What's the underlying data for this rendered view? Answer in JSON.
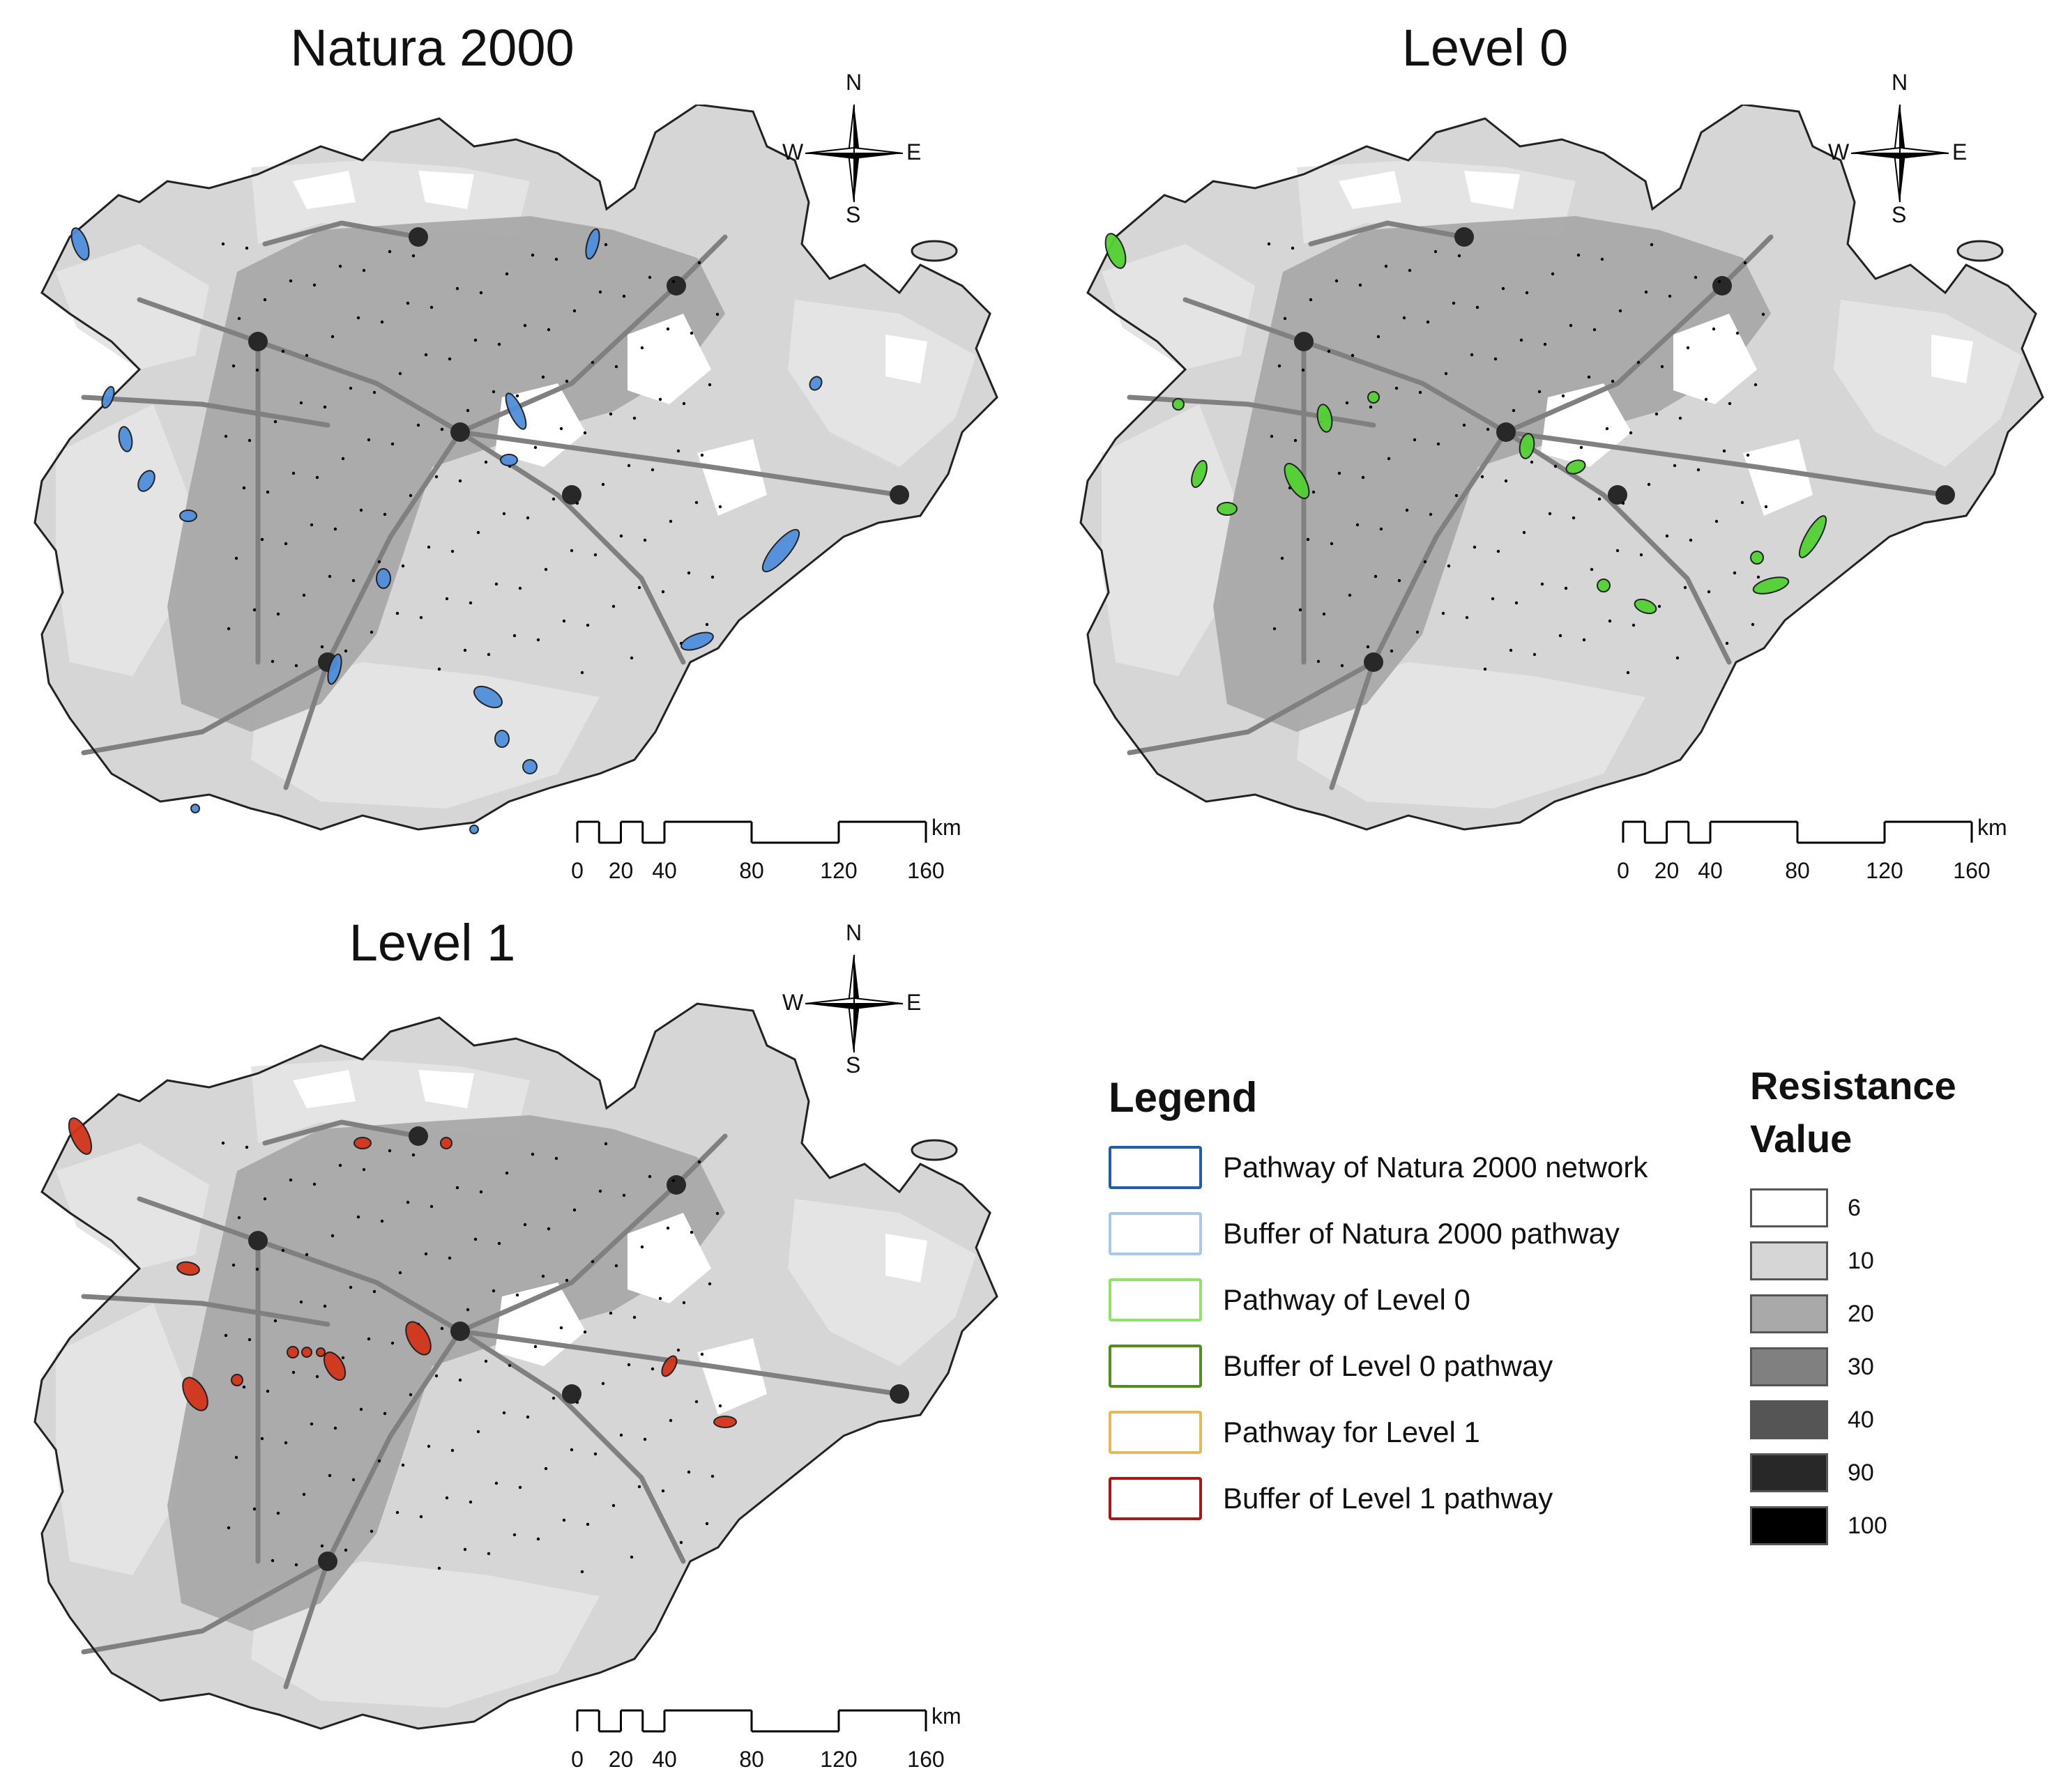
{
  "panels": [
    {
      "title": "Natura 2000",
      "pathway_color": "#4f8fdc"
    },
    {
      "title": "Level 0",
      "pathway_color": "#52d132"
    },
    {
      "title": "Level 1",
      "pathway_color": "#d2341a"
    }
  ],
  "compass": {
    "n": "N",
    "s": "S",
    "e": "E",
    "w": "W"
  },
  "scale": {
    "ticks": [
      "0",
      "20",
      "40",
      "80",
      "120",
      "160"
    ],
    "unit": "km"
  },
  "legend": {
    "title": "Legend",
    "items": [
      {
        "label": "Pathway of Natura 2000 network",
        "color": "#1f5ea8"
      },
      {
        "label": "Buffer of Natura 2000 pathway",
        "color": "#a9c8ee"
      },
      {
        "label": "Pathway of Level 0",
        "color": "#8fe26c"
      },
      {
        "label": "Buffer of Level 0 pathway",
        "color": "#4f8f1c"
      },
      {
        "label": "Pathway for Level 1",
        "color": "#e6b85a"
      },
      {
        "label": "Buffer of Level 1 pathway",
        "color": "#a81818"
      }
    ]
  },
  "resistance": {
    "title_line1": "Resistance",
    "title_line2": "Value",
    "classes": [
      {
        "value": "6",
        "color": "#ffffff"
      },
      {
        "value": "10",
        "color": "#d6d6d6"
      },
      {
        "value": "20",
        "color": "#a9a9a9"
      },
      {
        "value": "30",
        "color": "#808080"
      },
      {
        "value": "40",
        "color": "#555555"
      },
      {
        "value": "90",
        "color": "#282828"
      },
      {
        "value": "100",
        "color": "#000000"
      }
    ]
  }
}
